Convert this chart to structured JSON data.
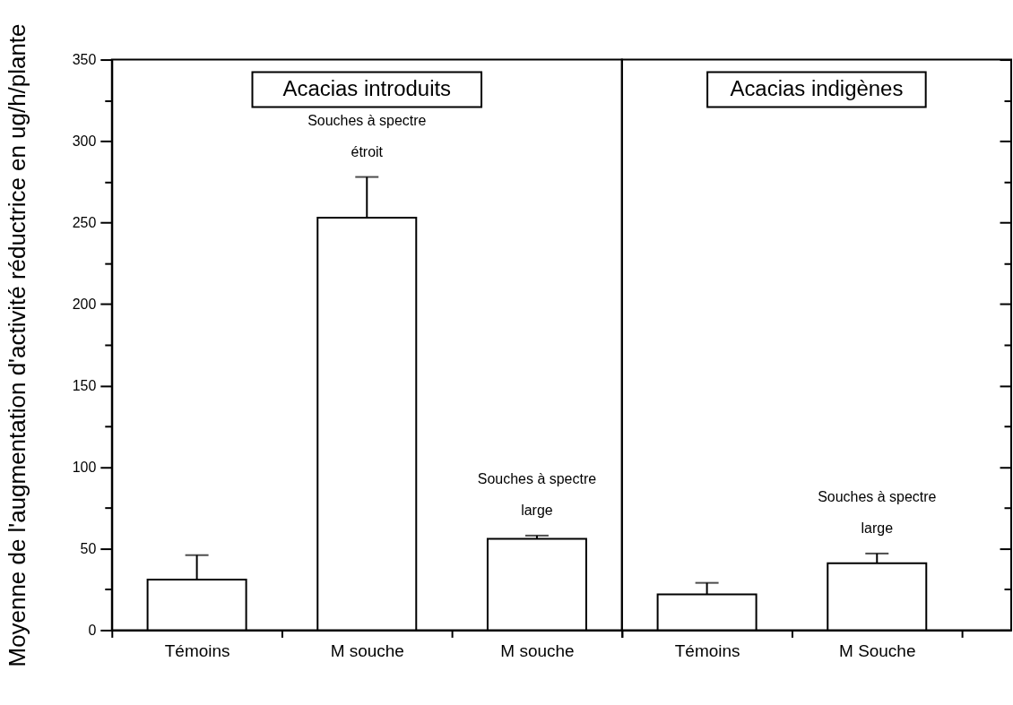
{
  "chart_data": [
    {
      "type": "bar",
      "title": "Acacias introduits",
      "ylabel": "Moyenne de l'augmentation d'activité réductrice en ug/h/plante",
      "categories": [
        "Témoins",
        "M souche",
        "M souche"
      ],
      "values": [
        31,
        253,
        56
      ],
      "errors": [
        [
          31,
          46
        ],
        [
          253,
          278
        ],
        [
          56,
          58
        ]
      ],
      "color": "#ffffff",
      "ylim": [
        0,
        350
      ],
      "yticks": [
        0,
        {
          "value": 25,
          "label": null
        },
        50,
        {
          "value": 75,
          "label": null
        },
        100,
        {
          "value": 125,
          "label": null
        },
        150,
        {
          "value": 175,
          "label": null
        },
        200,
        {
          "value": 225,
          "label": null
        },
        250,
        {
          "value": 275,
          "label": null
        },
        300,
        {
          "value": 325,
          "label": null
        },
        350
      ],
      "annotations": [
        {
          "text": "Souches à spectre étroit",
          "x": "M souche",
          "y": 278
        },
        "Souches à spectre large"
      ]
    },
    {
      "type": "bar",
      "title": "Acacias indigènes",
      "categories": [
        "Témoins",
        "M Souche"
      ],
      "values": [
        22,
        41
      ],
      "errors": [
        [
          22,
          29
        ],
        [
          41,
          47
        ]
      ],
      "color": "#ffffff",
      "ylim": [
        0,
        350
      ],
      "yticks": [
        0,
        {
          "value": 25,
          "label": null
        },
        50,
        {
          "value": 75,
          "label": null
        },
        100,
        {
          "value": 125,
          "label": null
        },
        150,
        {
          "value": 175,
          "label": null
        },
        200,
        {
          "value": 225,
          "label": null
        },
        250,
        {
          "value": 275,
          "label": null
        },
        300,
        {
          "value": 325,
          "label": null
        },
        350
      ],
      "tick_labels": "x",
      "annotations": [
        {
          "text": "Souches à spectre large",
          "x": "M Souche",
          "y": 47
        }
      ]
    }
  ]
}
